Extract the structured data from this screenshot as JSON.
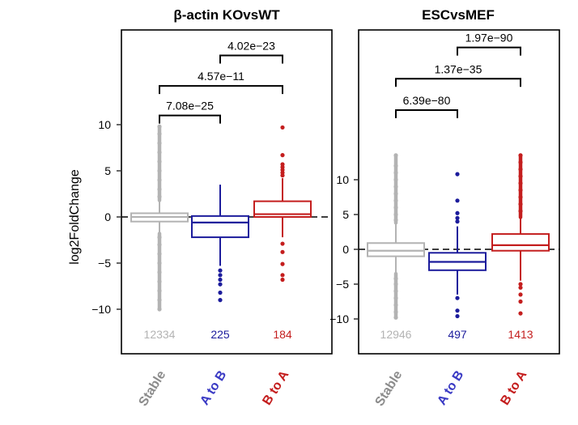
{
  "chart_data": [
    {
      "type": "boxplot",
      "title": "β-actin KOvsWT",
      "ylabel": "log2FoldChange",
      "ylim": [
        -15,
        20
      ],
      "yticks": [
        -10,
        -5,
        0,
        5,
        10
      ],
      "ytick_labels": [
        "−10",
        "−5",
        "0",
        "5",
        "10"
      ],
      "reference_line_y": 0,
      "categories": [
        "Stable",
        "A to B",
        "B to A"
      ],
      "colors": [
        "#b3b3b3",
        "#1c1c9c",
        "#c41e1e"
      ],
      "counts": [
        "12334",
        "225",
        "184"
      ],
      "boxes": [
        {
          "q1": -0.5,
          "median": 0.0,
          "q3": 0.4,
          "whisker_low": -1.8,
          "whisker_high": 1.8,
          "outliers_low": [
            -2.2,
            -3,
            -4,
            -5,
            -6,
            -7,
            -8,
            -9,
            -10
          ],
          "outliers_high": [
            2.2,
            3,
            4,
            5,
            6,
            7,
            8,
            9,
            9.8
          ]
        },
        {
          "q1": -2.2,
          "median": -0.6,
          "q3": 0.1,
          "whisker_low": -5.3,
          "whisker_high": 3.5,
          "outliers_low": [
            -5.8,
            -6.3,
            -6.8,
            -7.3,
            -8.2,
            -9.0
          ],
          "outliers_high": []
        },
        {
          "q1": 0.0,
          "median": 0.3,
          "q3": 1.7,
          "whisker_low": -2.2,
          "whisker_high": 4.2,
          "outliers_low": [
            -2.9,
            -3.8,
            -5.1,
            -6.3,
            -6.8
          ],
          "outliers_high": [
            4.5,
            4.8,
            5.1,
            5.4,
            5.7,
            6.7,
            9.7
          ]
        }
      ],
      "comparisons": [
        {
          "from": 0,
          "to": 1,
          "label": "7.08e−25",
          "y": 11
        },
        {
          "from": 0,
          "to": 2,
          "label": "4.57e−11",
          "y": 14.2
        },
        {
          "from": 1,
          "to": 2,
          "label": "4.02e−23",
          "y": 17.5
        }
      ]
    },
    {
      "type": "boxplot",
      "title": "ESCvsMEF",
      "ylabel": "",
      "ylim": [
        -15,
        32
      ],
      "yticks": [
        -10,
        -5,
        0,
        5,
        10
      ],
      "ytick_labels": [
        "−10",
        "−5",
        "0",
        "5",
        "10"
      ],
      "reference_line_y": 0,
      "categories": [
        "Stable",
        "A to B",
        "B to A"
      ],
      "colors": [
        "#b3b3b3",
        "#1c1c9c",
        "#c41e1e"
      ],
      "counts": [
        "12946",
        "497",
        "1413"
      ],
      "boxes": [
        {
          "q1": -1.0,
          "median": -0.2,
          "q3": 0.9,
          "whisker_low": -3.5,
          "whisker_high": 3.8,
          "outliers_low": [
            -4.2,
            -5,
            -6,
            -7,
            -8,
            -9,
            -9.8
          ],
          "outliers_high": [
            4.2,
            5,
            6,
            7,
            8,
            9,
            10,
            11,
            12,
            13.5
          ]
        },
        {
          "q1": -3.0,
          "median": -1.8,
          "q3": -0.5,
          "whisker_low": -6.5,
          "whisker_high": 3.3,
          "outliers_low": [
            -7.0,
            -8.8,
            -9.6
          ],
          "outliers_high": [
            4.0,
            4.5,
            5.2,
            7.0,
            10.8
          ]
        },
        {
          "q1": -0.2,
          "median": 0.6,
          "q3": 2.2,
          "whisker_low": -4.5,
          "whisker_high": 4.6,
          "outliers_low": [
            -5,
            -5.5,
            -6.5,
            -7.5,
            -9.2
          ],
          "outliers_high": [
            5.5,
            6.5,
            7.5,
            8.5,
            9.5,
            10.5,
            11.5,
            12.5,
            13.5
          ]
        }
      ],
      "comparisons": [
        {
          "from": 0,
          "to": 1,
          "label": "6.39e−80",
          "y": 20
        },
        {
          "from": 0,
          "to": 2,
          "label": "1.37e−35",
          "y": 24.5
        },
        {
          "from": 1,
          "to": 2,
          "label": "1.97e−90",
          "y": 29
        }
      ]
    }
  ]
}
